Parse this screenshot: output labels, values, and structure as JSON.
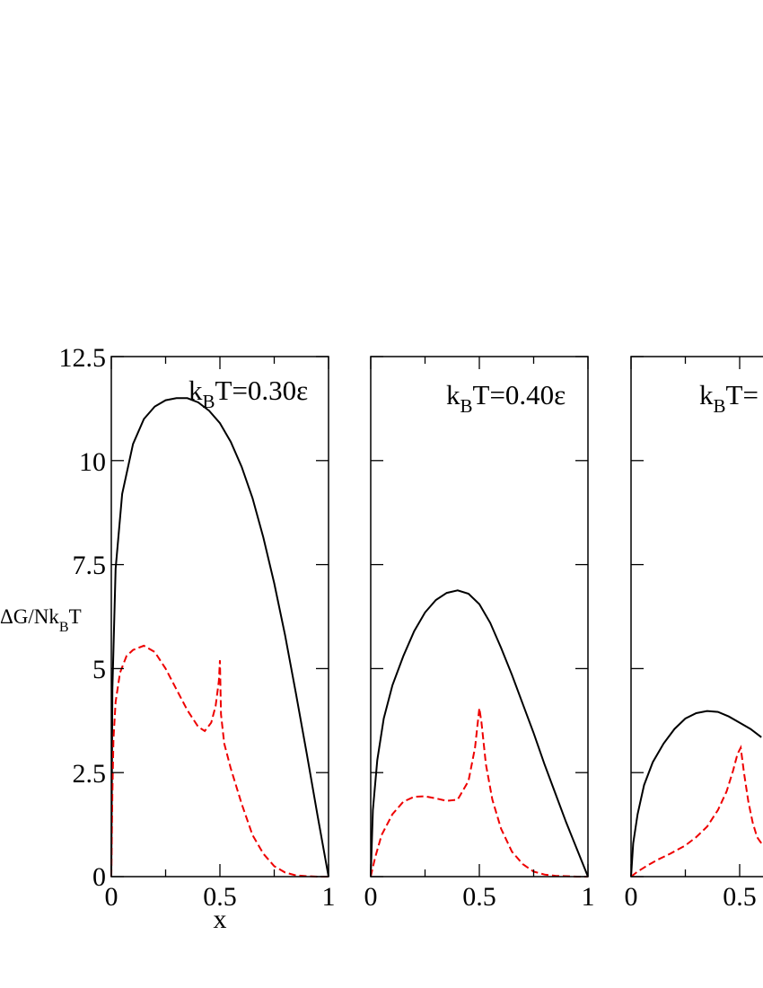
{
  "chart_data": [
    {
      "type": "line",
      "annotation": {
        "prefix": "k",
        "sub": "B",
        "suffix": "T=0.30ε"
      },
      "xlabel": "x",
      "ylabel": {
        "prefix": "ΔG/Nk",
        "sub": "B",
        "suffix": "T"
      },
      "xlim": [
        0,
        1
      ],
      "ylim": [
        0,
        12.5
      ],
      "x_ticks": [
        "0",
        "0.5",
        "1"
      ],
      "y_ticks": [
        "0",
        "2.5",
        "5",
        "7.5",
        "10",
        "12.5"
      ],
      "series": [
        {
          "style": "solid",
          "color": "#000000",
          "x": [
            0,
            0.005,
            0.02,
            0.05,
            0.1,
            0.15,
            0.2,
            0.25,
            0.3,
            0.35,
            0.4,
            0.45,
            0.5,
            0.55,
            0.6,
            0.65,
            0.7,
            0.75,
            0.8,
            0.85,
            0.9,
            0.95,
            1.0
          ],
          "y": [
            0,
            4.5,
            7.4,
            9.2,
            10.4,
            11.0,
            11.3,
            11.45,
            11.5,
            11.5,
            11.4,
            11.2,
            10.9,
            10.45,
            9.85,
            9.1,
            8.15,
            7.05,
            5.8,
            4.4,
            2.95,
            1.45,
            0
          ]
        },
        {
          "style": "dashed",
          "color": "#ee0000",
          "x": [
            0,
            0.005,
            0.01,
            0.02,
            0.04,
            0.07,
            0.1,
            0.15,
            0.2,
            0.25,
            0.3,
            0.35,
            0.4,
            0.43,
            0.46,
            0.48,
            0.495,
            0.5,
            0.505,
            0.52,
            0.55,
            0.6,
            0.65,
            0.7,
            0.75,
            0.8,
            0.85,
            0.9,
            0.95,
            1.0
          ],
          "y": [
            0,
            2.0,
            3.3,
            4.2,
            4.9,
            5.3,
            5.45,
            5.55,
            5.4,
            5.0,
            4.5,
            4.0,
            3.6,
            3.5,
            3.7,
            4.1,
            4.7,
            5.2,
            3.9,
            3.2,
            2.6,
            1.75,
            1.0,
            0.55,
            0.25,
            0.1,
            0.03,
            0.01,
            0,
            0
          ]
        }
      ]
    },
    {
      "type": "line",
      "annotation": {
        "prefix": "k",
        "sub": "B",
        "suffix": "T=0.40ε"
      },
      "xlabel": "",
      "xlim": [
        0,
        1
      ],
      "ylim": [
        0,
        12.5
      ],
      "x_ticks": [
        "0",
        "0.5",
        "1"
      ],
      "series": [
        {
          "style": "solid",
          "color": "#000000",
          "x": [
            0,
            0.01,
            0.03,
            0.06,
            0.1,
            0.15,
            0.2,
            0.25,
            0.3,
            0.35,
            0.4,
            0.45,
            0.5,
            0.55,
            0.6,
            0.65,
            0.7,
            0.75,
            0.8,
            0.85,
            0.9,
            0.95,
            1.0
          ],
          "y": [
            0,
            1.6,
            2.8,
            3.8,
            4.6,
            5.3,
            5.9,
            6.35,
            6.65,
            6.82,
            6.88,
            6.8,
            6.55,
            6.1,
            5.5,
            4.85,
            4.15,
            3.45,
            2.7,
            2.0,
            1.3,
            0.65,
            0
          ]
        },
        {
          "style": "dashed",
          "color": "#ee0000",
          "x": [
            0,
            0.02,
            0.05,
            0.1,
            0.15,
            0.2,
            0.25,
            0.3,
            0.35,
            0.4,
            0.45,
            0.48,
            0.5,
            0.51,
            0.53,
            0.56,
            0.6,
            0.65,
            0.7,
            0.75,
            0.8,
            0.85,
            0.9,
            0.95,
            1.0
          ],
          "y": [
            0,
            0.45,
            1.0,
            1.5,
            1.8,
            1.92,
            1.93,
            1.88,
            1.82,
            1.85,
            2.3,
            3.1,
            4.05,
            3.7,
            2.7,
            1.85,
            1.15,
            0.6,
            0.3,
            0.12,
            0.05,
            0.02,
            0.01,
            0,
            0
          ]
        }
      ]
    },
    {
      "type": "line",
      "annotation": {
        "prefix": "k",
        "sub": "B",
        "suffix": "T="
      },
      "xlabel": "",
      "xlim": [
        0,
        1
      ],
      "ylim": [
        0,
        12.5
      ],
      "x_ticks": [
        "0",
        "0.5"
      ],
      "series": [
        {
          "style": "solid",
          "color": "#000000",
          "x": [
            0,
            0.01,
            0.03,
            0.06,
            0.1,
            0.15,
            0.2,
            0.25,
            0.3,
            0.35,
            0.4,
            0.45,
            0.5,
            0.55,
            0.6
          ],
          "y": [
            0,
            0.8,
            1.5,
            2.2,
            2.75,
            3.2,
            3.55,
            3.8,
            3.93,
            3.98,
            3.96,
            3.85,
            3.7,
            3.55,
            3.35
          ]
        },
        {
          "style": "dashed",
          "color": "#ee0000",
          "x": [
            0,
            0.03,
            0.07,
            0.12,
            0.18,
            0.25,
            0.3,
            0.35,
            0.4,
            0.44,
            0.47,
            0.49,
            0.505,
            0.52,
            0.54,
            0.56,
            0.58,
            0.6
          ],
          "y": [
            0,
            0.12,
            0.25,
            0.4,
            0.55,
            0.75,
            0.95,
            1.2,
            1.6,
            2.05,
            2.55,
            2.95,
            3.1,
            2.5,
            1.8,
            1.3,
            0.95,
            0.8
          ]
        }
      ]
    }
  ]
}
